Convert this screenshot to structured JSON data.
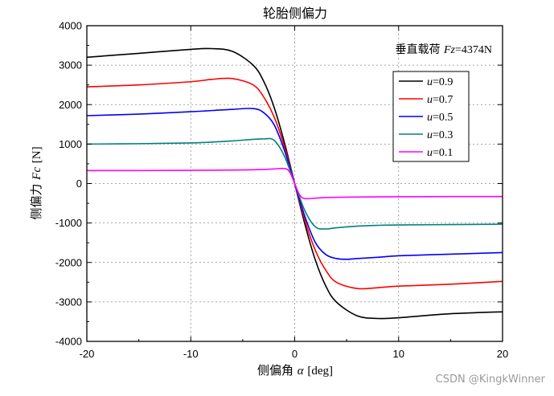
{
  "chart_data": {
    "type": "line",
    "title": "轮胎侧偏力",
    "xlabel_main": "侧偏角",
    "xlabel_symbol": "α",
    "xlabel_unit": "[deg]",
    "ylabel_main": "侧偏力",
    "ylabel_symbol": "Fc",
    "ylabel_unit": "[N]",
    "xlim": [
      -20,
      20
    ],
    "ylim": [
      -4000,
      4000
    ],
    "xticks": [
      -20,
      -10,
      0,
      10,
      20
    ],
    "yticks": [
      -4000,
      -3000,
      -2000,
      -1000,
      0,
      1000,
      2000,
      3000,
      4000
    ],
    "grid": "dashed",
    "legend_position": "right",
    "annotation": {
      "prefix": "垂直载荷",
      "symbol": "Fz",
      "value": "=4374N"
    },
    "series": [
      {
        "name": "u=0.9",
        "label_symbol": "u",
        "label_value": "=0.9",
        "color": "#000000",
        "x": [
          -20,
          -15,
          -10,
          -8,
          -6,
          -4,
          -3,
          -2,
          -1,
          0,
          1,
          2,
          3,
          4,
          6,
          8,
          10,
          15,
          20
        ],
        "y": [
          3200,
          3300,
          3400,
          3420,
          3350,
          3000,
          2600,
          1950,
          1050,
          0,
          -1050,
          -1950,
          -2600,
          -3000,
          -3350,
          -3420,
          -3400,
          -3300,
          -3250
        ]
      },
      {
        "name": "u=0.7",
        "label_symbol": "u",
        "label_value": "=0.7",
        "color": "#ff0000",
        "x": [
          -20,
          -15,
          -10,
          -8,
          -6,
          -4,
          -3,
          -2,
          -1,
          0,
          1,
          2,
          3,
          4,
          6,
          8,
          10,
          15,
          20
        ],
        "y": [
          2450,
          2500,
          2580,
          2640,
          2660,
          2500,
          2200,
          1700,
          950,
          0,
          -950,
          -1700,
          -2200,
          -2500,
          -2660,
          -2640,
          -2600,
          -2550,
          -2480
        ]
      },
      {
        "name": "u=0.5",
        "label_symbol": "u",
        "label_value": "=0.5",
        "color": "#0000ff",
        "x": [
          -20,
          -15,
          -10,
          -8,
          -6,
          -4,
          -3,
          -2,
          -1,
          0,
          1,
          2,
          3,
          4,
          5,
          6,
          8,
          10,
          15,
          20
        ],
        "y": [
          1720,
          1760,
          1820,
          1850,
          1880,
          1900,
          1800,
          1500,
          850,
          0,
          -850,
          -1500,
          -1800,
          -1900,
          -1920,
          -1900,
          -1870,
          -1830,
          -1790,
          -1750
        ]
      },
      {
        "name": "u=0.3",
        "label_symbol": "u",
        "label_value": "=0.3",
        "color": "#008080",
        "x": [
          -20,
          -15,
          -10,
          -8,
          -6,
          -4,
          -3,
          -2,
          -1,
          0,
          1,
          2,
          3,
          4,
          6,
          8,
          10,
          15,
          20
        ],
        "y": [
          1000,
          1010,
          1030,
          1050,
          1080,
          1120,
          1130,
          1100,
          700,
          0,
          -700,
          -1100,
          -1150,
          -1120,
          -1080,
          -1060,
          -1050,
          -1040,
          -1030
        ]
      },
      {
        "name": "u=0.1",
        "label_symbol": "u",
        "label_value": "=0.1",
        "color": "#ff00ff",
        "x": [
          -20,
          -15,
          -10,
          -5,
          -3,
          -2,
          -1,
          -0.5,
          0,
          0.5,
          1,
          2,
          3,
          5,
          10,
          15,
          20
        ],
        "y": [
          330,
          330,
          335,
          345,
          355,
          370,
          380,
          300,
          0,
          -300,
          -380,
          -370,
          -355,
          -345,
          -335,
          -330,
          -330
        ]
      }
    ]
  },
  "watermark": "CSDN @KingkWinner"
}
